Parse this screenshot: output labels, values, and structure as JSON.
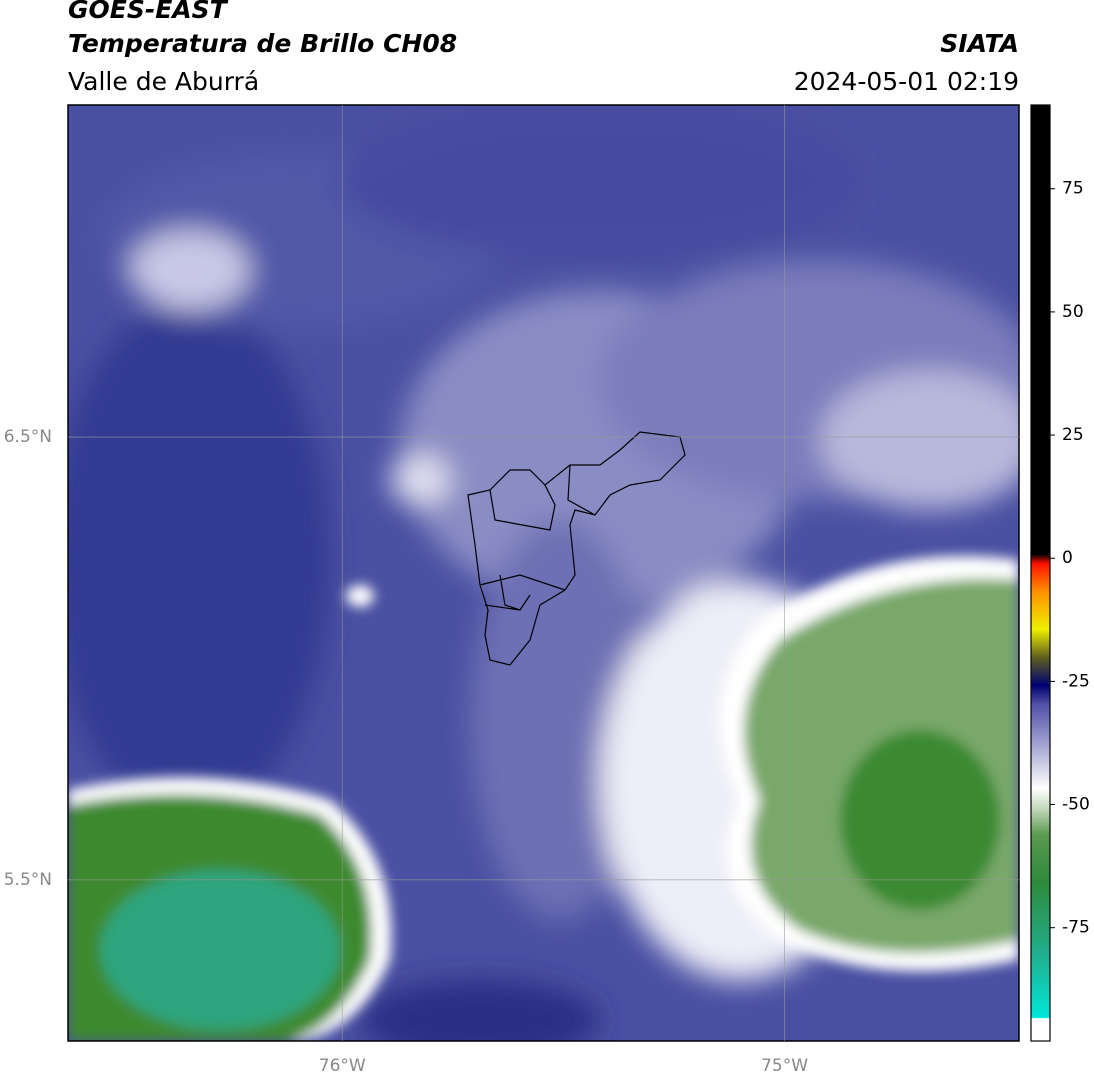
{
  "map": {
    "title": "GOES-EAST",
    "subtitle": "Temperatura de Brillo CH08",
    "source": "SIATA",
    "region": "Valle de Aburrá",
    "timestamp": "2024-05-01 02:19",
    "xlim": [
      -76.62,
      -74.47
    ],
    "ylim": [
      5.136,
      7.25
    ],
    "xticks": [
      {
        "value": -76,
        "label": "76°W"
      },
      {
        "value": -75,
        "label": "75°W"
      }
    ],
    "yticks": [
      {
        "value": 5.5,
        "label": "5.5°N"
      },
      {
        "value": 6.5,
        "label": "6.5°N"
      }
    ],
    "grid": true,
    "colorbar": {
      "lim": [
        -98,
        92
      ],
      "ticks": [
        -75,
        -50,
        -25,
        0,
        25,
        50,
        75
      ]
    }
  }
}
